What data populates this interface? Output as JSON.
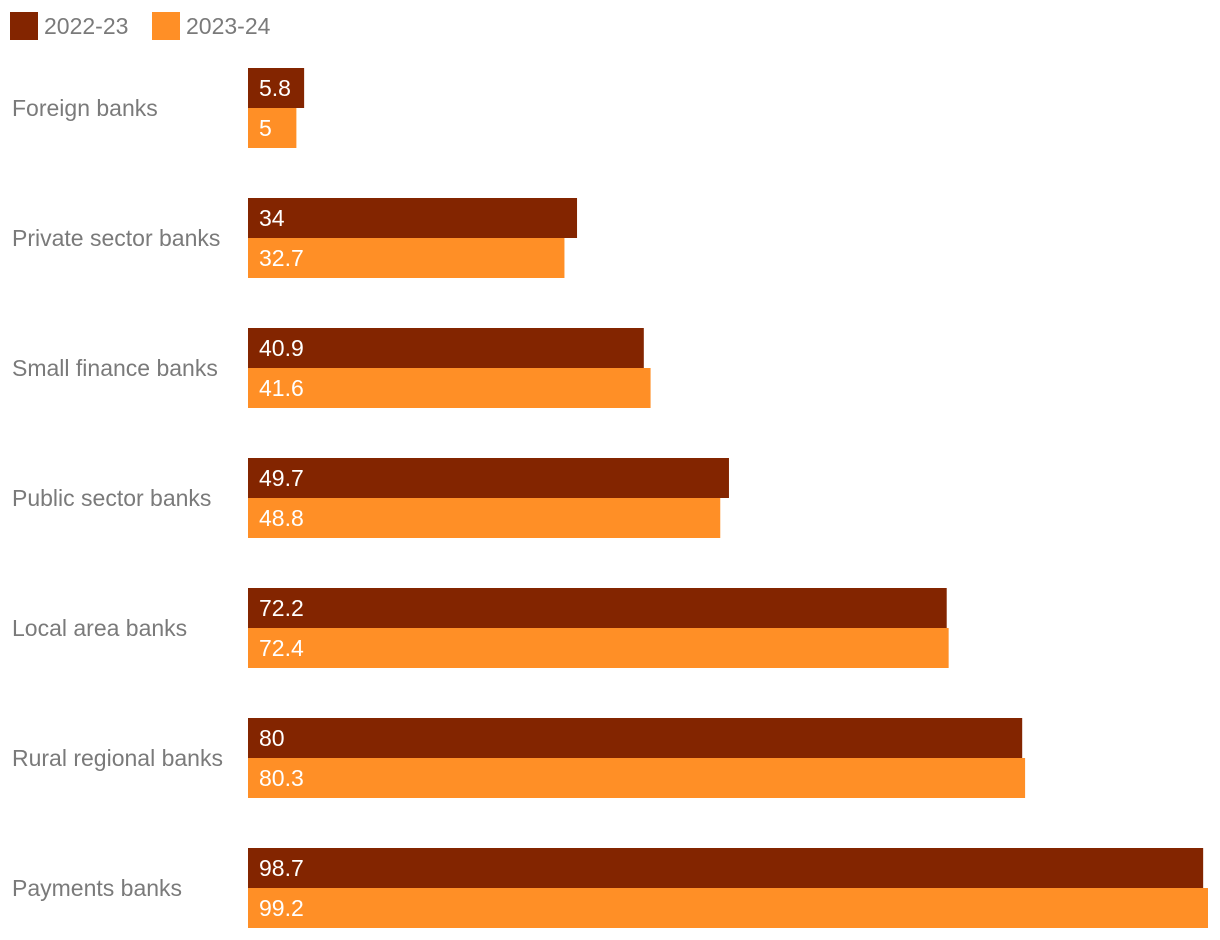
{
  "chart_data": {
    "type": "bar",
    "orientation": "horizontal",
    "title": "",
    "xlabel": "",
    "ylabel": "",
    "categories": [
      "Foreign banks",
      "Private sector banks",
      "Small finance banks",
      "Public sector banks",
      "Local area banks",
      "Rural regional banks",
      "Payments banks"
    ],
    "series": [
      {
        "name": "2022-23",
        "color": "#832500",
        "values": [
          5.8,
          34,
          40.9,
          49.7,
          72.2,
          80,
          98.7
        ],
        "labels": [
          "5.8",
          "34",
          "40.9",
          "49.7",
          "72.2",
          "80",
          "98.7"
        ]
      },
      {
        "name": "2023-24",
        "color": "#ff8f26",
        "values": [
          5,
          32.7,
          41.6,
          48.8,
          72.4,
          80.3,
          99.2
        ],
        "labels": [
          "5",
          "32.7",
          "41.6",
          "48.8",
          "72.4",
          "80.3",
          "99.2"
        ]
      }
    ],
    "xlim": [
      0,
      99.2
    ],
    "grid": false,
    "legend_position": "top-left"
  }
}
